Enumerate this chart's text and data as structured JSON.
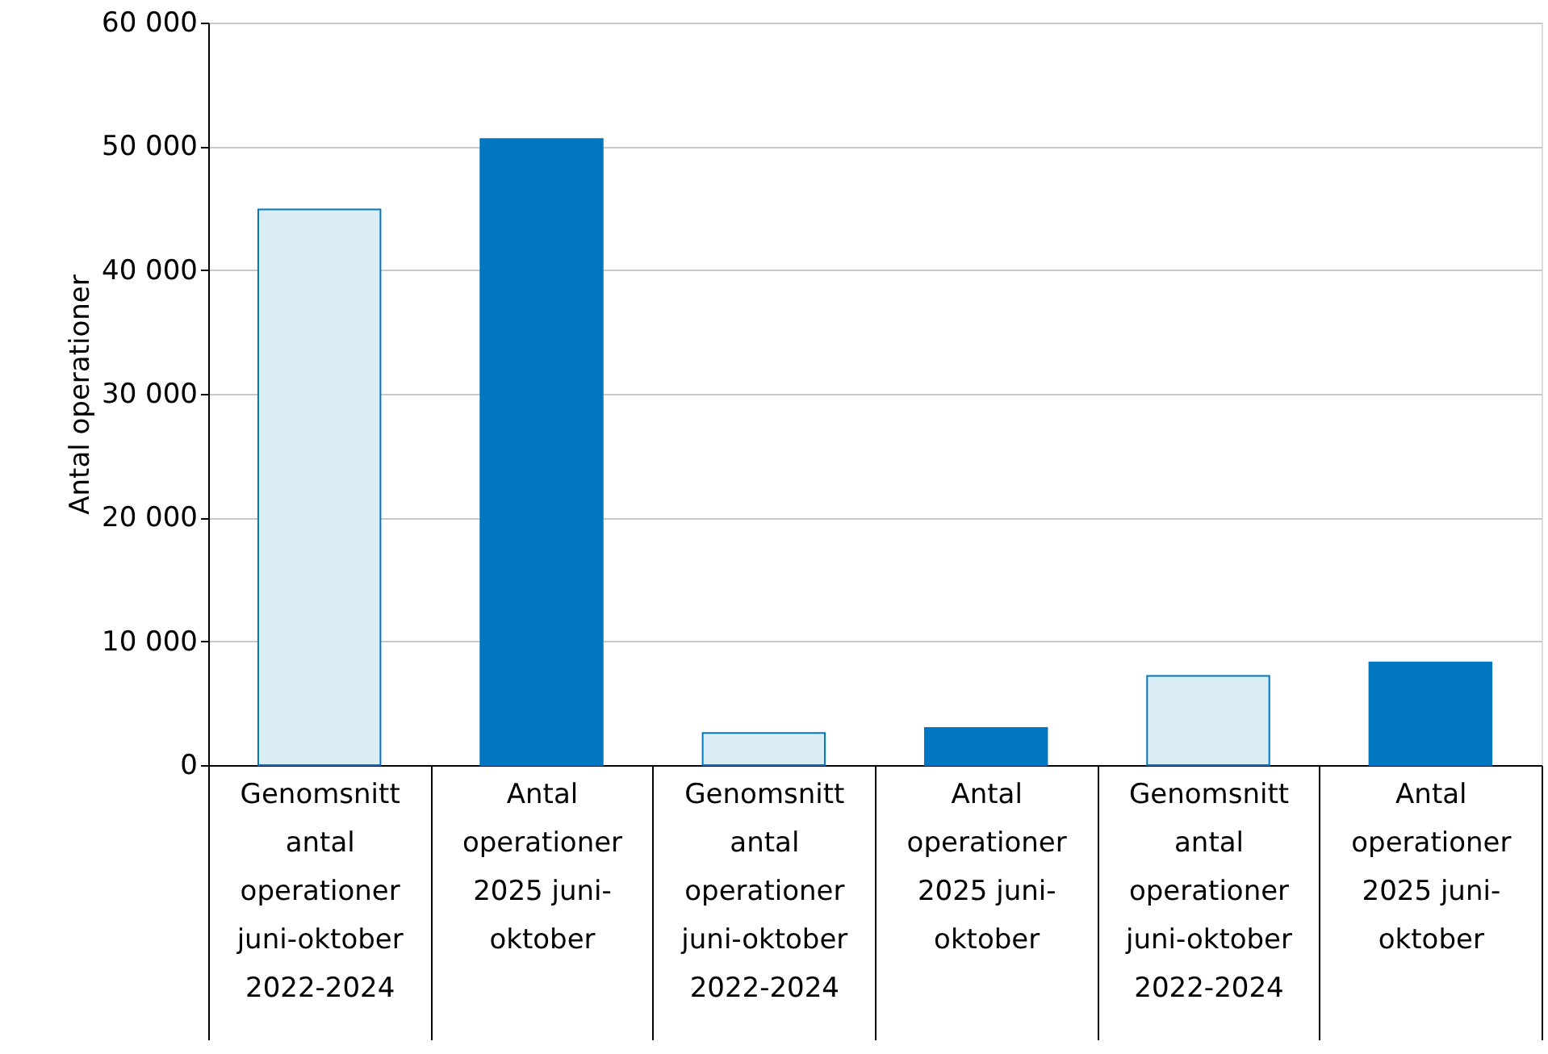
{
  "chart_data": {
    "type": "bar",
    "ylabel": "Antal operationer",
    "categories": [
      "Genomsnitt antal operationer juni-oktober 2022-2024",
      "Antal operationer 2025 juni-oktober",
      "Genomsnitt antal operationer juni-oktober 2022-2024",
      "Antal operationer 2025 juni-oktober",
      "Genomsnitt antal operationer juni-oktober 2022-2024",
      "Antal operationer 2025 juni-oktober"
    ],
    "values": [
      44900,
      50600,
      2600,
      3000,
      7200,
      8300
    ],
    "colors": [
      "#daecf4",
      "#0077c0",
      "#daecf4",
      "#0077c0",
      "#daecf4",
      "#0077c0"
    ],
    "ylim": [
      0,
      60000
    ],
    "yticks": [
      0,
      {
        "value": 10000,
        "label": "10 000"
      },
      {
        "value": 20000,
        "label": "20 000"
      },
      {
        "value": 30000,
        "label": "30 000"
      },
      {
        "value": 40000,
        "label": "40 000"
      },
      {
        "value": 50000,
        "label": "50 000"
      },
      {
        "value": 60000,
        "label": "60 000"
      }
    ],
    "grid": "y"
  }
}
